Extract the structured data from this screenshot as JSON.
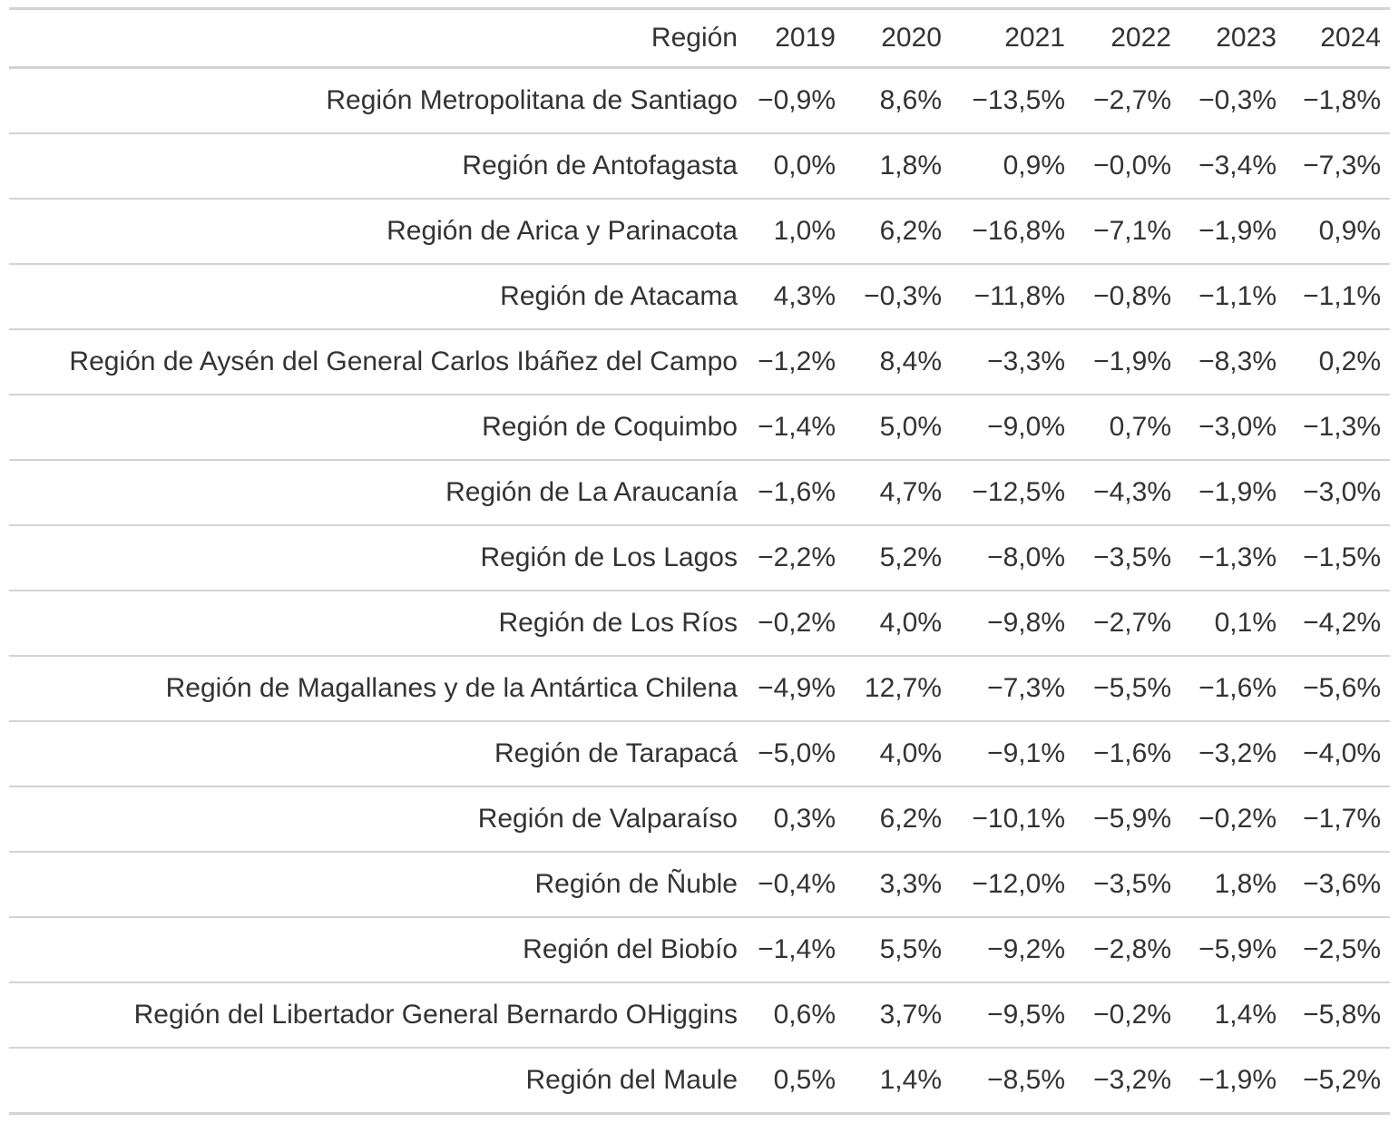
{
  "table": {
    "headers": [
      "Región",
      "2019",
      "2020",
      "2021",
      "2022",
      "2023",
      "2024"
    ],
    "rows": [
      [
        "Región Metropolitana de Santiago",
        "−0,9%",
        "8,6%",
        "−13,5%",
        "−2,7%",
        "−0,3%",
        "−1,8%"
      ],
      [
        "Región de Antofagasta",
        "0,0%",
        "1,8%",
        "0,9%",
        "−0,0%",
        "−3,4%",
        "−7,3%"
      ],
      [
        "Región de Arica y Parinacota",
        "1,0%",
        "6,2%",
        "−16,8%",
        "−7,1%",
        "−1,9%",
        "0,9%"
      ],
      [
        "Región de Atacama",
        "4,3%",
        "−0,3%",
        "−11,8%",
        "−0,8%",
        "−1,1%",
        "−1,1%"
      ],
      [
        "Región de Aysén del General Carlos Ibáñez del Campo",
        "−1,2%",
        "8,4%",
        "−3,3%",
        "−1,9%",
        "−8,3%",
        "0,2%"
      ],
      [
        "Región de Coquimbo",
        "−1,4%",
        "5,0%",
        "−9,0%",
        "0,7%",
        "−3,0%",
        "−1,3%"
      ],
      [
        "Región de La Araucanía",
        "−1,6%",
        "4,7%",
        "−12,5%",
        "−4,3%",
        "−1,9%",
        "−3,0%"
      ],
      [
        "Región de Los Lagos",
        "−2,2%",
        "5,2%",
        "−8,0%",
        "−3,5%",
        "−1,3%",
        "−1,5%"
      ],
      [
        "Región de Los Ríos",
        "−0,2%",
        "4,0%",
        "−9,8%",
        "−2,7%",
        "0,1%",
        "−4,2%"
      ],
      [
        "Región de Magallanes y de la Antártica Chilena",
        "−4,9%",
        "12,7%",
        "−7,3%",
        "−5,5%",
        "−1,6%",
        "−5,6%"
      ],
      [
        "Región de Tarapacá",
        "−5,0%",
        "4,0%",
        "−9,1%",
        "−1,6%",
        "−3,2%",
        "−4,0%"
      ],
      [
        "Región de Valparaíso",
        "0,3%",
        "6,2%",
        "−10,1%",
        "−5,9%",
        "−0,2%",
        "−1,7%"
      ],
      [
        "Región de Ñuble",
        "−0,4%",
        "3,3%",
        "−12,0%",
        "−3,5%",
        "1,8%",
        "−3,6%"
      ],
      [
        "Región del Biobío",
        "−1,4%",
        "5,5%",
        "−9,2%",
        "−2,8%",
        "−5,9%",
        "−2,5%"
      ],
      [
        "Región del Libertador General Bernardo OHiggins",
        "0,6%",
        "3,7%",
        "−9,5%",
        "−0,2%",
        "1,4%",
        "−5,8%"
      ],
      [
        "Región del Maule",
        "0,5%",
        "1,4%",
        "−8,5%",
        "−3,2%",
        "−1,9%",
        "−5,2%"
      ]
    ]
  }
}
